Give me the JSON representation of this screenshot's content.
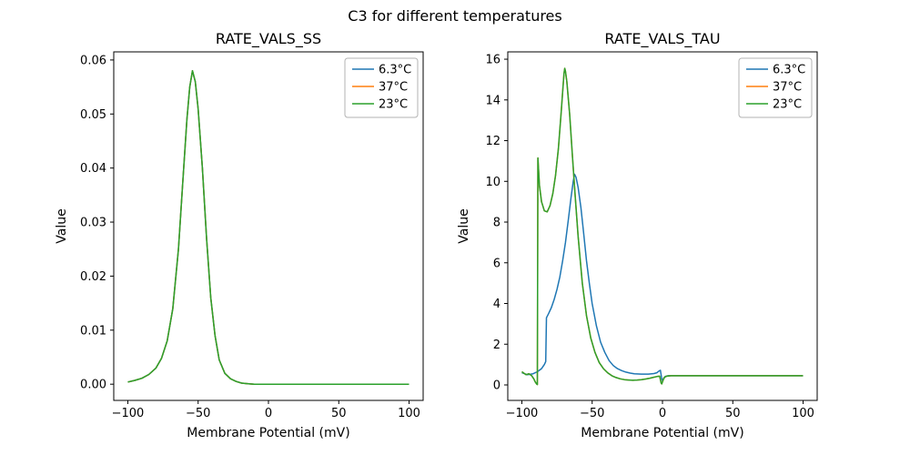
{
  "figure_title": "C3 for different temperatures",
  "colors": {
    "blue": "#1f77b4",
    "orange": "#ff7f0e",
    "green": "#2ca02c",
    "legend_border": "#b3b3b3",
    "axes": "#000000"
  },
  "chart_data": [
    {
      "type": "line",
      "title": "RATE_VALS_SS",
      "xlabel": "Membrane Potential (mV)",
      "ylabel": "Value",
      "xlim": [
        -110,
        110
      ],
      "ylim": [
        -0.003,
        0.0615
      ],
      "grid": false,
      "legend_position": "upper right",
      "xticks": {
        "values": [
          -100,
          -50,
          0,
          50,
          100
        ],
        "labels": [
          "−100",
          "−50",
          "0",
          "50",
          "100"
        ]
      },
      "yticks": {
        "values": [
          0,
          0.01,
          0.02,
          0.03,
          0.04,
          0.05,
          0.06
        ],
        "labels": [
          "0.00",
          "0.01",
          "0.02",
          "0.03",
          "0.04",
          "0.05",
          "0.06"
        ]
      },
      "series": [
        {
          "name": "6.3°C",
          "color": "#1f77b4",
          "x": [
            -100,
            -95,
            -90,
            -85,
            -80,
            -76,
            -72,
            -68,
            -64,
            -61,
            -58,
            -56,
            -54,
            -52,
            -50,
            -47,
            -44,
            -41,
            -38,
            -35,
            -31,
            -27,
            -23,
            -19,
            -15,
            -10,
            0,
            25,
            50,
            75,
            100
          ],
          "y": [
            0.0004,
            0.0007,
            0.0011,
            0.0018,
            0.003,
            0.0048,
            0.008,
            0.014,
            0.025,
            0.037,
            0.049,
            0.055,
            0.058,
            0.056,
            0.051,
            0.04,
            0.027,
            0.016,
            0.009,
            0.0045,
            0.002,
            0.001,
            0.0005,
            0.0002,
            0.0001,
            0,
            0,
            0,
            0,
            0,
            0
          ]
        },
        {
          "name": "37°C",
          "color": "#ff7f0e",
          "x": [
            -100,
            -95,
            -90,
            -85,
            -80,
            -76,
            -72,
            -68,
            -64,
            -61,
            -58,
            -56,
            -54,
            -52,
            -50,
            -47,
            -44,
            -41,
            -38,
            -35,
            -31,
            -27,
            -23,
            -19,
            -15,
            -10,
            0,
            25,
            50,
            75,
            100
          ],
          "y": [
            0.0004,
            0.0007,
            0.0011,
            0.0018,
            0.003,
            0.0048,
            0.008,
            0.014,
            0.025,
            0.037,
            0.049,
            0.055,
            0.058,
            0.056,
            0.051,
            0.04,
            0.027,
            0.016,
            0.009,
            0.0045,
            0.002,
            0.001,
            0.0005,
            0.0002,
            0.0001,
            0,
            0,
            0,
            0,
            0,
            0
          ]
        },
        {
          "name": "23°C",
          "color": "#2ca02c",
          "x": [
            -100,
            -95,
            -90,
            -85,
            -80,
            -76,
            -72,
            -68,
            -64,
            -61,
            -58,
            -56,
            -54,
            -52,
            -50,
            -47,
            -44,
            -41,
            -38,
            -35,
            -31,
            -27,
            -23,
            -19,
            -15,
            -10,
            0,
            25,
            50,
            75,
            100
          ],
          "y": [
            0.0004,
            0.0007,
            0.0011,
            0.0018,
            0.003,
            0.0048,
            0.008,
            0.014,
            0.025,
            0.037,
            0.049,
            0.055,
            0.058,
            0.056,
            0.051,
            0.04,
            0.027,
            0.016,
            0.009,
            0.0045,
            0.002,
            0.001,
            0.0005,
            0.0002,
            0.0001,
            0,
            0,
            0,
            0,
            0,
            0
          ]
        }
      ]
    },
    {
      "type": "line",
      "title": "RATE_VALS_TAU",
      "xlabel": "Membrane Potential (mV)",
      "ylabel": "Value",
      "xlim": [
        -110,
        110
      ],
      "ylim": [
        -0.76,
        16.36
      ],
      "grid": false,
      "legend_position": "upper right",
      "xticks": {
        "values": [
          -100,
          -50,
          0,
          50,
          100
        ],
        "labels": [
          "−100",
          "−50",
          "0",
          "50",
          "100"
        ]
      },
      "yticks": {
        "values": [
          0,
          2,
          4,
          6,
          8,
          10,
          12,
          14,
          16
        ],
        "labels": [
          "0",
          "2",
          "4",
          "6",
          "8",
          "10",
          "12",
          "14",
          "16"
        ]
      },
      "series": [
        {
          "name": "6.3°C",
          "color": "#1f77b4",
          "x": [
            -100,
            -96,
            -92,
            -89,
            -86,
            -84,
            -83,
            -82.5,
            -81,
            -79,
            -77,
            -75,
            -73,
            -71,
            -69,
            -67,
            -65,
            -63.5,
            -62.5,
            -61.5,
            -60,
            -58,
            -56,
            -54,
            -52,
            -50,
            -47,
            -44,
            -41,
            -38,
            -35,
            -32,
            -29,
            -26,
            -23,
            -20,
            -15,
            -10,
            -6,
            -4,
            -2.5,
            -1.5,
            -0.5,
            0,
            1,
            2,
            4,
            8,
            15,
            30,
            60,
            100
          ],
          "y": [
            0.6,
            0.5,
            0.55,
            0.65,
            0.8,
            1.0,
            1.15,
            3.3,
            3.5,
            3.8,
            4.2,
            4.7,
            5.3,
            6.1,
            7.0,
            8.1,
            9.2,
            10.0,
            10.35,
            10.2,
            9.7,
            8.7,
            7.4,
            6.1,
            5.0,
            4.0,
            2.9,
            2.1,
            1.6,
            1.2,
            0.95,
            0.8,
            0.7,
            0.63,
            0.58,
            0.55,
            0.53,
            0.53,
            0.56,
            0.6,
            0.68,
            0.72,
            0.3,
            0.2,
            0.35,
            0.42,
            0.45,
            0.45,
            0.45,
            0.45,
            0.45,
            0.45
          ]
        },
        {
          "name": "37°C",
          "color": "#ff7f0e",
          "x": [
            -100,
            -97,
            -95,
            -93,
            -91.5,
            -90.5,
            -89.5,
            -89,
            -88.6,
            -87.5,
            -86,
            -84,
            -82,
            -80,
            -78,
            -76,
            -74,
            -72,
            -71,
            -70,
            -69.5,
            -69,
            -68,
            -66,
            -64,
            -62,
            -60,
            -57,
            -54,
            -51,
            -48,
            -45,
            -42,
            -39,
            -36,
            -33,
            -30,
            -27,
            -24,
            -21,
            -18,
            -15,
            -12,
            -9,
            -6,
            -4,
            -2,
            -1,
            -0.5,
            0.5,
            1.5,
            3,
            6,
            10,
            30,
            60,
            100
          ],
          "y": [
            0.65,
            0.5,
            0.55,
            0.45,
            0.3,
            0.15,
            0.05,
            0.02,
            11.15,
            9.8,
            9.0,
            8.55,
            8.5,
            8.8,
            9.4,
            10.3,
            11.6,
            13.4,
            14.4,
            15.3,
            15.55,
            15.4,
            14.9,
            13.3,
            11.2,
            9.2,
            7.3,
            5.0,
            3.4,
            2.3,
            1.6,
            1.1,
            0.8,
            0.6,
            0.45,
            0.36,
            0.3,
            0.26,
            0.24,
            0.23,
            0.24,
            0.26,
            0.29,
            0.33,
            0.38,
            0.41,
            0.43,
            0.1,
            0.05,
            0.25,
            0.38,
            0.43,
            0.45,
            0.45,
            0.45,
            0.45,
            0.45
          ]
        },
        {
          "name": "23°C",
          "color": "#2ca02c",
          "x": [
            -100,
            -97,
            -95,
            -93,
            -91.5,
            -90.5,
            -89.5,
            -89,
            -88.6,
            -87.5,
            -86,
            -84,
            -82,
            -80,
            -78,
            -76,
            -74,
            -72,
            -71,
            -70,
            -69.5,
            -69,
            -68,
            -66,
            -64,
            -62,
            -60,
            -57,
            -54,
            -51,
            -48,
            -45,
            -42,
            -39,
            -36,
            -33,
            -30,
            -27,
            -24,
            -21,
            -18,
            -15,
            -12,
            -9,
            -6,
            -4,
            -2,
            -1,
            -0.5,
            0.5,
            1.5,
            3,
            6,
            10,
            30,
            60,
            100
          ],
          "y": [
            0.65,
            0.5,
            0.55,
            0.45,
            0.3,
            0.15,
            0.05,
            0.02,
            11.15,
            9.8,
            9.0,
            8.55,
            8.5,
            8.8,
            9.4,
            10.3,
            11.6,
            13.4,
            14.4,
            15.3,
            15.55,
            15.4,
            14.9,
            13.3,
            11.2,
            9.2,
            7.3,
            5.0,
            3.4,
            2.3,
            1.6,
            1.1,
            0.8,
            0.6,
            0.45,
            0.36,
            0.3,
            0.26,
            0.24,
            0.23,
            0.24,
            0.26,
            0.29,
            0.33,
            0.38,
            0.41,
            0.43,
            0.1,
            0.05,
            0.25,
            0.38,
            0.43,
            0.45,
            0.45,
            0.45,
            0.45,
            0.45
          ]
        }
      ]
    }
  ]
}
